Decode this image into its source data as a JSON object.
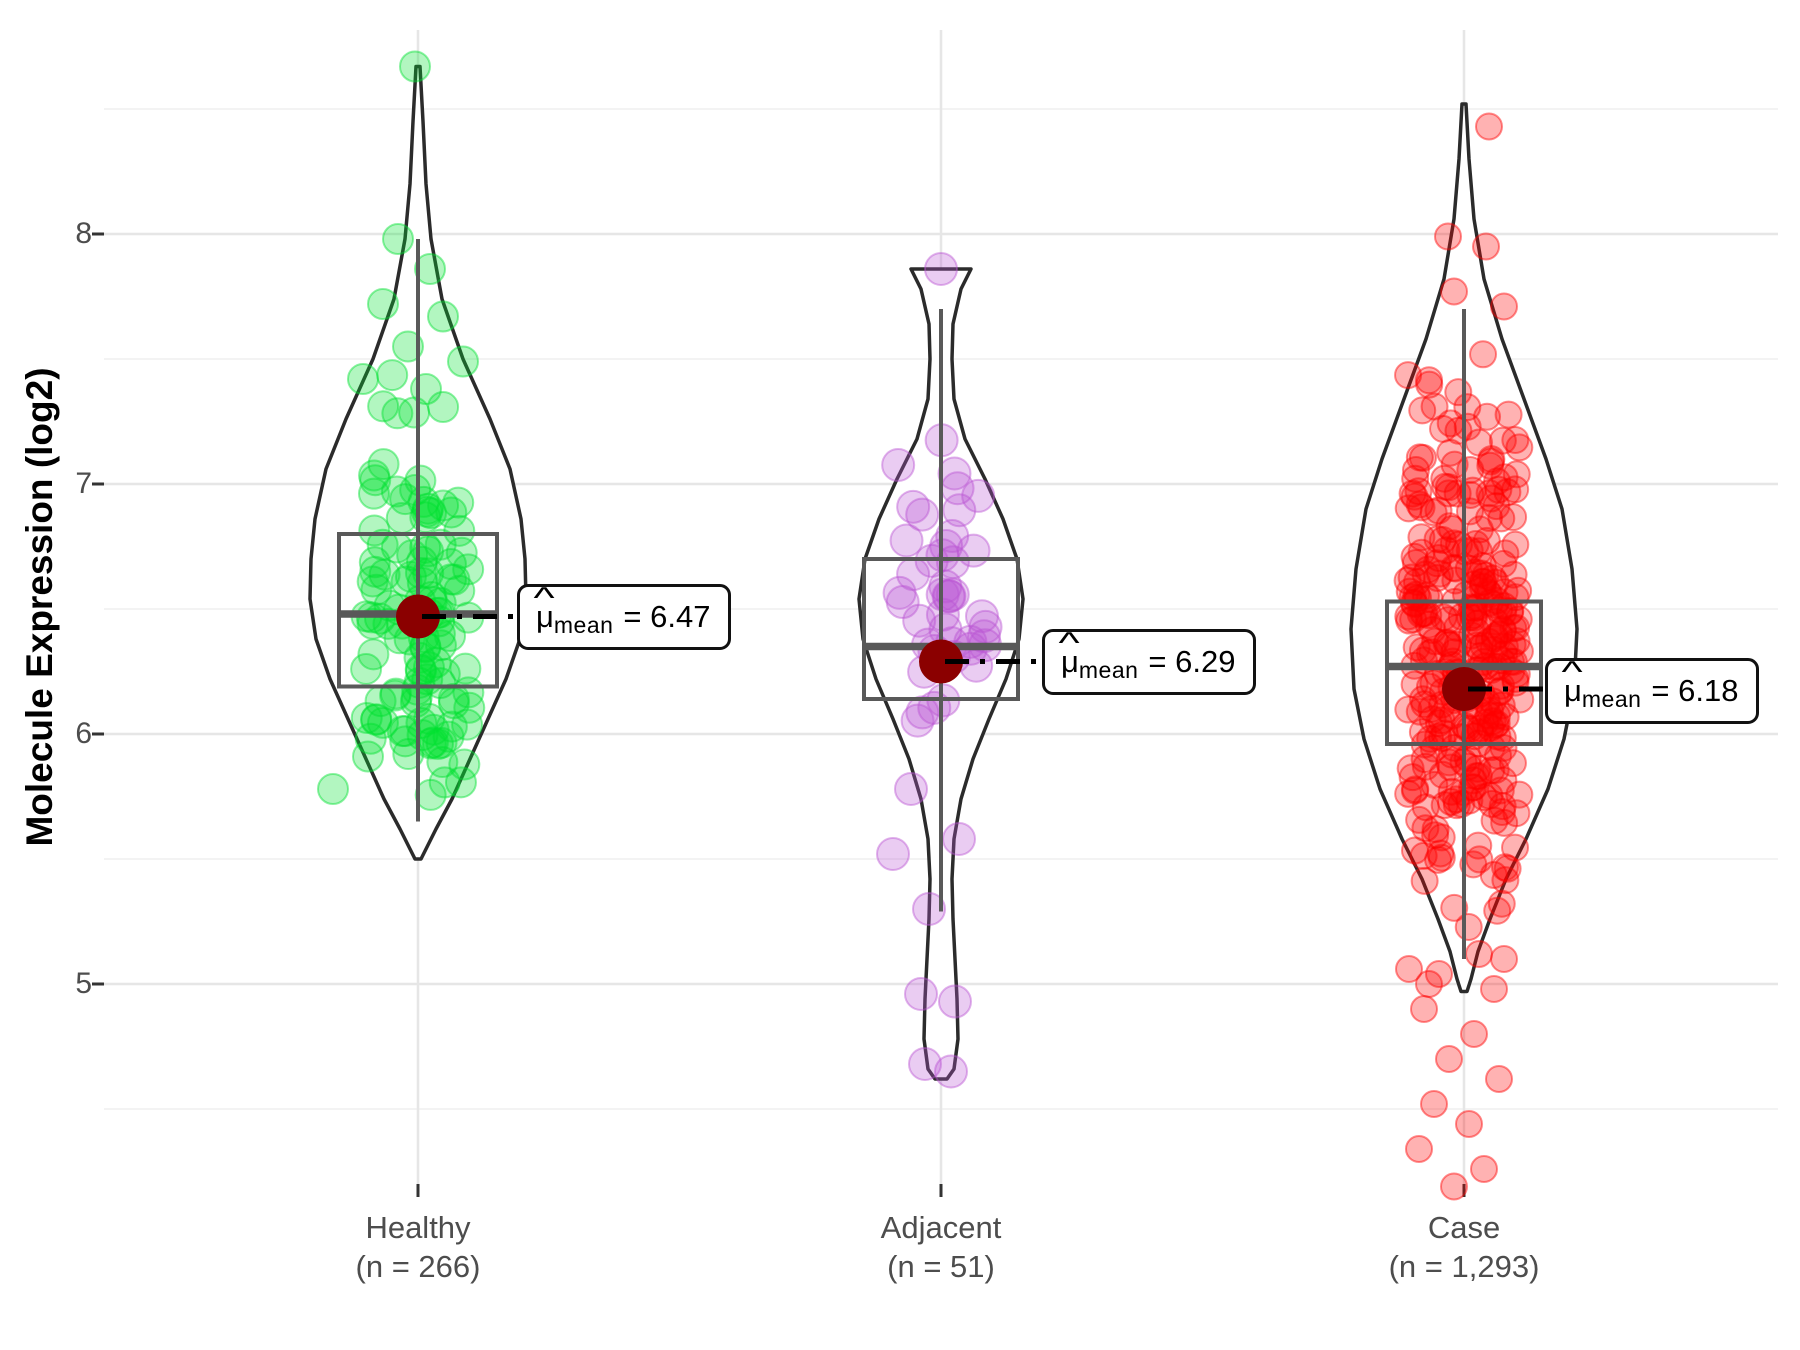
{
  "chart_data": {
    "type": "violin",
    "title": "",
    "ylabel": "Molecule Expression (log2)",
    "xlabel": "",
    "grid": "major+minor",
    "legend": "none",
    "y_axis": {
      "label": "Molecule Expression (log2)",
      "tick_labels": [
        "8",
        "7",
        "6",
        "5"
      ],
      "tick_values": [
        8,
        7,
        6,
        5
      ],
      "minor_tick_values": [
        8.5,
        7.5,
        6.5,
        5.5,
        4.5
      ],
      "range_shown": [
        4.18,
        8.82
      ]
    },
    "x_axis": {
      "categories": [
        "Healthy",
        "Adjacent",
        "Case"
      ]
    },
    "style": {
      "mean_dot_color": "#8B0000",
      "box_color": "#595959",
      "violin_outline_color": "#2b2b2b",
      "violin_fill": "#ffffff",
      "major_grid_color": "#e6e6e6",
      "minor_grid_color": "#f3f3f3",
      "axis_tick_color": "#333333",
      "axis_text_color": "#4d4d4d"
    },
    "groups": [
      {
        "label": "Healthy",
        "sublabel": "(n = 266)",
        "n": 266,
        "point_color_rgb": [
          0,
          225,
          48
        ],
        "point_radius": 15,
        "mean": 6.47,
        "median": 6.48,
        "q1": 6.19,
        "q3": 6.8,
        "whisker_low": 5.65,
        "whisker_high": 7.98,
        "min": 5.5,
        "max": 8.67,
        "annotation": {
          "mu": "μ",
          "hat": "^",
          "sub": "mean",
          "eq_value": "= 6.47"
        },
        "violin_profile": [
          [
            8.67,
            2
          ],
          [
            8.45,
            5
          ],
          [
            8.2,
            8
          ],
          [
            7.98,
            13
          ],
          [
            7.74,
            24
          ],
          [
            7.5,
            45
          ],
          [
            7.26,
            72
          ],
          [
            7.06,
            92
          ],
          [
            6.86,
            103
          ],
          [
            6.7,
            107
          ],
          [
            6.54,
            108
          ],
          [
            6.38,
            102
          ],
          [
            6.22,
            88
          ],
          [
            6.06,
            70
          ],
          [
            5.9,
            52
          ],
          [
            5.74,
            34
          ],
          [
            5.62,
            18
          ],
          [
            5.54,
            8
          ],
          [
            5.5,
            3
          ]
        ],
        "outlier_points": [
          [
            -3,
            8.67
          ],
          [
            -20,
            7.98
          ],
          [
            12,
            7.86
          ],
          [
            -35,
            7.72
          ],
          [
            25,
            7.67
          ],
          [
            -10,
            7.55
          ],
          [
            45,
            7.49
          ],
          [
            -55,
            7.42
          ],
          [
            8,
            7.38
          ],
          [
            -85,
            5.78
          ],
          [
            -50,
            5.91
          ],
          [
            20,
            5.96
          ]
        ],
        "cloud": {
          "count": 118,
          "center": 6.47,
          "sd": 0.36,
          "clip_low": 5.74,
          "clip_high": 7.5,
          "jitter": 52,
          "seed": 11
        }
      },
      {
        "label": "Adjacent",
        "sublabel": "(n = 51)",
        "n": 51,
        "point_color_rgb": [
          186,
          85,
          211
        ],
        "point_radius": 16,
        "mean": 6.29,
        "median": 6.35,
        "q1": 6.14,
        "q3": 6.7,
        "whisker_low": 5.29,
        "whisker_high": 7.7,
        "min": 4.62,
        "max": 7.86,
        "annotation": {
          "mu": "μ",
          "hat": "^",
          "sub": "mean",
          "eq_value": "= 6.29"
        },
        "violin_profile": [
          [
            7.86,
            30
          ],
          [
            7.78,
            20
          ],
          [
            7.64,
            12
          ],
          [
            7.5,
            11
          ],
          [
            7.34,
            13
          ],
          [
            7.18,
            24
          ],
          [
            7.02,
            44
          ],
          [
            6.86,
            62
          ],
          [
            6.7,
            76
          ],
          [
            6.54,
            82
          ],
          [
            6.38,
            78
          ],
          [
            6.22,
            65
          ],
          [
            6.06,
            48
          ],
          [
            5.9,
            32
          ],
          [
            5.74,
            20
          ],
          [
            5.58,
            13
          ],
          [
            5.42,
            11
          ],
          [
            5.26,
            12
          ],
          [
            5.1,
            14
          ],
          [
            4.94,
            16
          ],
          [
            4.78,
            17
          ],
          [
            4.66,
            13
          ],
          [
            4.62,
            6
          ]
        ],
        "outlier_points": [
          [
            0,
            7.86
          ],
          [
            -30,
            5.78
          ],
          [
            18,
            5.58
          ],
          [
            -48,
            5.52
          ],
          [
            -12,
            5.3
          ],
          [
            -20,
            4.96
          ],
          [
            14,
            4.93
          ],
          [
            -16,
            4.68
          ],
          [
            10,
            4.65
          ]
        ],
        "cloud": {
          "count": 42,
          "center": 6.5,
          "sd": 0.34,
          "clip_low": 5.86,
          "clip_high": 7.22,
          "jitter": 45,
          "seed": 7
        }
      },
      {
        "label": "Case",
        "sublabel": "(n = 1,293)",
        "n": 1293,
        "point_color_rgb": [
          255,
          0,
          0
        ],
        "point_radius": 13,
        "mean": 6.18,
        "median": 6.27,
        "q1": 5.96,
        "q3": 6.53,
        "whisker_low": 5.1,
        "whisker_high": 7.7,
        "min": 4.19,
        "max": 8.43,
        "annotation": {
          "mu": "μ",
          "hat": "^",
          "sub": "mean",
          "eq_value": "= 6.18"
        },
        "violin_profile": [
          [
            8.52,
            2
          ],
          [
            8.3,
            5
          ],
          [
            8.06,
            10
          ],
          [
            7.82,
            20
          ],
          [
            7.58,
            38
          ],
          [
            7.34,
            60
          ],
          [
            7.1,
            82
          ],
          [
            6.9,
            98
          ],
          [
            6.66,
            108
          ],
          [
            6.42,
            113
          ],
          [
            6.18,
            110
          ],
          [
            5.98,
            100
          ],
          [
            5.78,
            84
          ],
          [
            5.58,
            62
          ],
          [
            5.42,
            42
          ],
          [
            5.26,
            26
          ],
          [
            5.13,
            14
          ],
          [
            5.02,
            7
          ],
          [
            4.97,
            3
          ]
        ],
        "outlier_points": [
          [
            25,
            8.43
          ],
          [
            -16,
            7.99
          ],
          [
            22,
            7.95
          ],
          [
            -10,
            7.77
          ],
          [
            40,
            7.71
          ],
          [
            15,
            5.12
          ],
          [
            40,
            5.1
          ],
          [
            -55,
            5.06
          ],
          [
            -25,
            5.04
          ],
          [
            -35,
            5.0
          ],
          [
            30,
            4.98
          ],
          [
            -40,
            4.9
          ],
          [
            10,
            4.8
          ],
          [
            -15,
            4.7
          ],
          [
            35,
            4.62
          ],
          [
            -30,
            4.52
          ],
          [
            5,
            4.44
          ],
          [
            -45,
            4.34
          ],
          [
            20,
            4.26
          ],
          [
            -10,
            4.19
          ]
        ],
        "cloud": {
          "count": 330,
          "center": 6.38,
          "sd": 0.48,
          "clip_low": 5.13,
          "clip_high": 7.62,
          "jitter": 57,
          "seed": 3
        }
      }
    ]
  }
}
